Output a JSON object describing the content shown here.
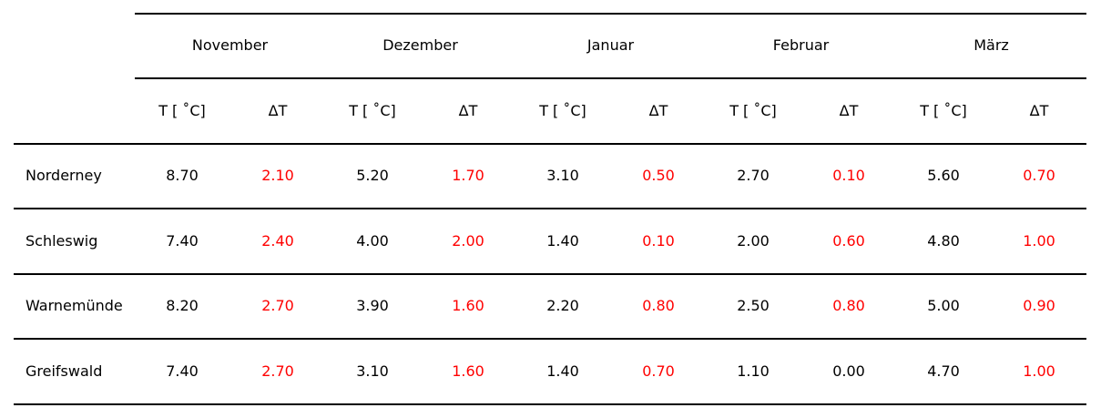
{
  "chart_data": {
    "type": "table",
    "months": [
      "November",
      "Dezember",
      "Januar",
      "Februar",
      "März"
    ],
    "column_headers": [
      "T [ ˚C]",
      "ΔT"
    ],
    "highlight_color": "#ff0000",
    "rows": [
      {
        "station": "Norderney",
        "values": [
          {
            "t": "8.70",
            "dt": "2.10",
            "dt_highlight": true
          },
          {
            "t": "5.20",
            "dt": "1.70",
            "dt_highlight": true
          },
          {
            "t": "3.10",
            "dt": "0.50",
            "dt_highlight": true
          },
          {
            "t": "2.70",
            "dt": "0.10",
            "dt_highlight": true
          },
          {
            "t": "5.60",
            "dt": "0.70",
            "dt_highlight": true
          }
        ]
      },
      {
        "station": "Schleswig",
        "values": [
          {
            "t": "7.40",
            "dt": "2.40",
            "dt_highlight": true
          },
          {
            "t": "4.00",
            "dt": "2.00",
            "dt_highlight": true
          },
          {
            "t": "1.40",
            "dt": "0.10",
            "dt_highlight": true
          },
          {
            "t": "2.00",
            "dt": "0.60",
            "dt_highlight": true
          },
          {
            "t": "4.80",
            "dt": "1.00",
            "dt_highlight": true
          }
        ]
      },
      {
        "station": "Warnemünde",
        "values": [
          {
            "t": "8.20",
            "dt": "2.70",
            "dt_highlight": true
          },
          {
            "t": "3.90",
            "dt": "1.60",
            "dt_highlight": true
          },
          {
            "t": "2.20",
            "dt": "0.80",
            "dt_highlight": true
          },
          {
            "t": "2.50",
            "dt": "0.80",
            "dt_highlight": true
          },
          {
            "t": "5.00",
            "dt": "0.90",
            "dt_highlight": true
          }
        ]
      },
      {
        "station": "Greifswald",
        "values": [
          {
            "t": "7.40",
            "dt": "2.70",
            "dt_highlight": true
          },
          {
            "t": "3.10",
            "dt": "1.60",
            "dt_highlight": true
          },
          {
            "t": "1.40",
            "dt": "0.70",
            "dt_highlight": true
          },
          {
            "t": "1.10",
            "dt": "0.00",
            "dt_highlight": false
          },
          {
            "t": "4.70",
            "dt": "1.00",
            "dt_highlight": true
          }
        ]
      }
    ]
  }
}
